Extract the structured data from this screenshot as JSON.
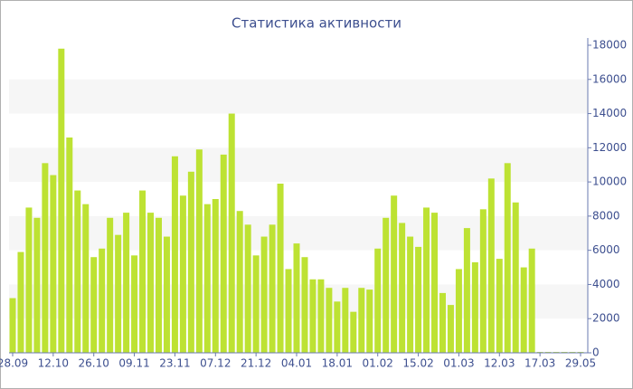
{
  "chart_data": {
    "type": "bar",
    "title": "Статистика активности",
    "categories": [
      "28.09",
      null,
      null,
      null,
      null,
      "12.10",
      null,
      null,
      null,
      null,
      "26.10",
      null,
      null,
      null,
      null,
      "09.11",
      null,
      null,
      null,
      null,
      "23.11",
      null,
      null,
      null,
      null,
      "07.12",
      null,
      null,
      null,
      null,
      "21.12",
      null,
      null,
      null,
      null,
      "04.01",
      null,
      null,
      null,
      null,
      "18.01",
      null,
      null,
      null,
      null,
      "01.02",
      null,
      null,
      null,
      null,
      "15.02",
      null,
      null,
      null,
      null,
      "01.03",
      null,
      null,
      null,
      null,
      "12.03",
      null,
      null,
      null,
      null,
      "17.03",
      null,
      null,
      null,
      null,
      "29.05"
    ],
    "values": [
      3200,
      5900,
      8500,
      7900,
      11100,
      10400,
      17800,
      12600,
      9500,
      8700,
      5600,
      6100,
      7900,
      6900,
      8200,
      5700,
      9500,
      8200,
      7900,
      6800,
      11500,
      9200,
      10600,
      11900,
      8700,
      9000,
      11600,
      14000,
      8300,
      7500,
      5700,
      6800,
      7500,
      9900,
      4900,
      6400,
      5600,
      4300,
      4300,
      3800,
      3000,
      3800,
      2400,
      3800,
      3700,
      6100,
      7900,
      9200,
      7600,
      6800,
      6200,
      8500,
      8200,
      3500,
      2800,
      4900,
      7300,
      5300,
      8400,
      10200,
      5500,
      11100,
      8800,
      5000,
      6100,
      50,
      50,
      50,
      50,
      50,
      50
    ],
    "color": "#bde233",
    "ylim": [
      0,
      18000
    ],
    "yticks": [
      0,
      2000,
      4000,
      6000,
      8000,
      10000,
      12000,
      14000,
      16000,
      18000
    ],
    "y_axis_side": "right",
    "grid": "bands",
    "band_color": "#f6f6f6"
  }
}
